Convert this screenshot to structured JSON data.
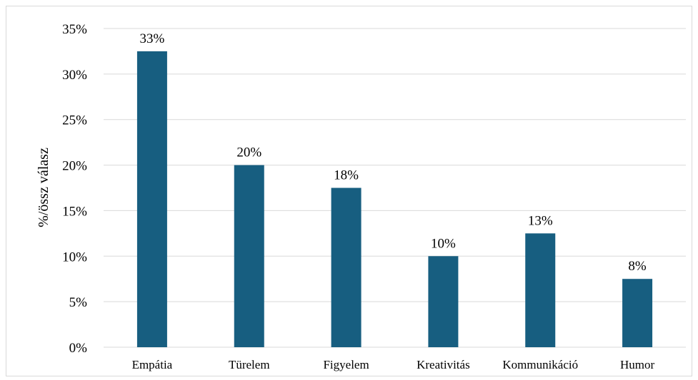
{
  "chart_data": {
    "type": "bar",
    "title": "",
    "xlabel": "",
    "ylabel": "%/össz válasz",
    "categories": [
      "Empátia",
      "Türelem",
      "Figyelem",
      "Kreativitás",
      "Kommunikáció",
      "Humor"
    ],
    "values": [
      32.5,
      20,
      17.5,
      10,
      12.5,
      7.5
    ],
    "data_labels": [
      "33%",
      "20%",
      "18%",
      "10%",
      "13%",
      "8%"
    ],
    "ylim": [
      0,
      35
    ],
    "y_ticks": [
      0,
      5,
      10,
      15,
      20,
      25,
      30,
      35
    ],
    "y_tick_labels": [
      "0%",
      "5%",
      "10%",
      "15%",
      "20%",
      "25%",
      "30%",
      "35%"
    ],
    "grid": true,
    "legend": "none",
    "bar_color": "#175e80",
    "grid_color": "#d9d9d9"
  }
}
